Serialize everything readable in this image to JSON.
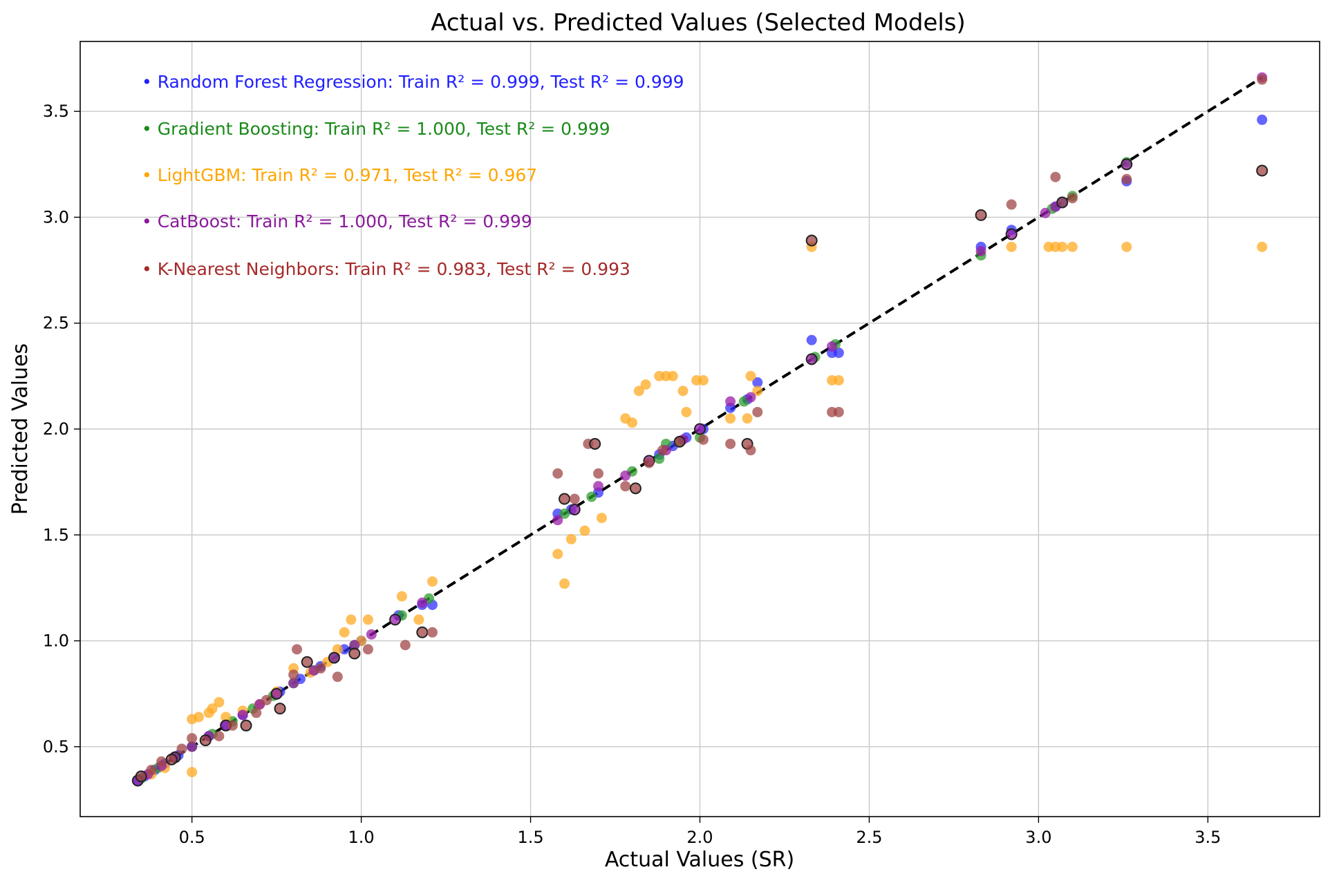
{
  "chart_data": {
    "type": "scatter",
    "title": "Actual vs. Predicted Values (Selected Models)",
    "xlabel": "Actual Values (SR)",
    "ylabel": "Predicted Values",
    "xlim": [
      0.17,
      3.83
    ],
    "ylim": [
      0.17,
      3.83
    ],
    "xticks": [
      0.5,
      1.0,
      1.5,
      2.0,
      2.5,
      3.0,
      3.5
    ],
    "yticks": [
      0.5,
      1.0,
      1.5,
      2.0,
      2.5,
      3.0,
      3.5
    ],
    "xtick_labels": [
      "0.5",
      "1.0",
      "1.5",
      "2.0",
      "2.5",
      "3.0",
      "3.5"
    ],
    "ytick_labels": [
      "0.5",
      "1.0",
      "1.5",
      "2.0",
      "2.5",
      "3.0",
      "3.5"
    ],
    "grid": true,
    "reference_line": {
      "style": "dashed",
      "color": "#000000",
      "from": [
        0.34,
        0.34
      ],
      "to": [
        3.66,
        3.66
      ]
    },
    "annotations": [
      {
        "text": "• Random Forest Regression: Train R² = 0.999, Test R² = 0.999",
        "color": "#1f1fff"
      },
      {
        "text": "• Gradient Boosting: Train R² = 1.000, Test R² = 0.999",
        "color": "#1a8a1a"
      },
      {
        "text": "• LightGBM: Train R² = 0.971, Test R² = 0.967",
        "color": "#ffa500"
      },
      {
        "text": "• CatBoost: Train R² = 1.000, Test R² = 0.999",
        "color": "#8b1a9b"
      },
      {
        "text": "• K-Nearest Neighbors: Train R² = 0.983, Test R² = 0.993",
        "color": "#a52a2a"
      }
    ],
    "series": [
      {
        "name": "Random Forest Regression",
        "color": "#3030ff",
        "x": [
          0.34,
          0.36,
          0.39,
          0.42,
          0.46,
          0.5,
          0.55,
          0.6,
          0.65,
          0.7,
          0.76,
          0.82,
          0.88,
          0.95,
          1.0,
          1.11,
          1.18,
          1.21,
          1.58,
          1.62,
          1.7,
          1.88,
          1.92,
          1.96,
          2.01,
          2.09,
          2.14,
          2.17,
          2.33,
          2.39,
          2.41,
          2.83,
          2.92,
          3.05,
          3.07,
          3.26,
          3.66
        ],
        "y": [
          0.34,
          0.36,
          0.39,
          0.42,
          0.46,
          0.5,
          0.55,
          0.6,
          0.65,
          0.7,
          0.76,
          0.82,
          0.88,
          0.96,
          1.0,
          1.12,
          1.17,
          1.17,
          1.6,
          1.62,
          1.7,
          1.88,
          1.92,
          1.96,
          2.0,
          2.1,
          2.14,
          2.22,
          2.42,
          2.36,
          2.36,
          2.86,
          2.94,
          3.05,
          3.07,
          3.17,
          3.46
        ]
      },
      {
        "name": "Gradient Boosting",
        "color": "#2e9e2e",
        "x": [
          0.35,
          0.4,
          0.45,
          0.5,
          0.56,
          0.62,
          0.68,
          0.74,
          0.8,
          0.86,
          0.92,
          0.98,
          1.12,
          1.2,
          1.6,
          1.68,
          1.8,
          1.88,
          1.9,
          1.94,
          2.0,
          2.13,
          2.34,
          2.4,
          2.83,
          3.04,
          3.1,
          3.26
        ],
        "y": [
          0.35,
          0.4,
          0.45,
          0.5,
          0.56,
          0.62,
          0.68,
          0.74,
          0.8,
          0.86,
          0.92,
          0.98,
          1.12,
          1.2,
          1.6,
          1.68,
          1.8,
          1.86,
          1.93,
          1.94,
          1.96,
          2.13,
          2.34,
          2.4,
          2.82,
          3.04,
          3.1,
          3.26
        ]
      },
      {
        "name": "LightGBM",
        "color": "#ffaa22",
        "x": [
          0.38,
          0.42,
          0.5,
          0.5,
          0.52,
          0.55,
          0.56,
          0.58,
          0.6,
          0.65,
          0.7,
          0.75,
          0.8,
          0.85,
          0.9,
          0.93,
          0.95,
          0.97,
          1.0,
          1.02,
          1.12,
          1.17,
          1.21,
          1.58,
          1.6,
          1.62,
          1.66,
          1.71,
          1.78,
          1.8,
          1.82,
          1.84,
          1.88,
          1.9,
          1.92,
          1.95,
          1.96,
          1.99,
          2.01,
          2.09,
          2.14,
          2.15,
          2.17,
          2.33,
          2.39,
          2.41,
          2.92,
          3.03,
          3.05,
          3.07,
          3.1,
          3.26,
          3.66
        ],
        "y": [
          0.37,
          0.4,
          0.38,
          0.63,
          0.64,
          0.66,
          0.68,
          0.71,
          0.64,
          0.67,
          0.7,
          0.76,
          0.87,
          0.85,
          0.9,
          0.96,
          1.04,
          1.1,
          1.0,
          1.1,
          1.21,
          1.1,
          1.28,
          1.41,
          1.27,
          1.48,
          1.52,
          1.58,
          2.05,
          2.03,
          2.18,
          2.21,
          2.25,
          2.25,
          2.25,
          2.18,
          2.08,
          2.23,
          2.23,
          2.05,
          2.05,
          2.25,
          2.18,
          2.86,
          2.23,
          2.23,
          2.86,
          2.86,
          2.86,
          2.86,
          2.86,
          2.86,
          2.86
        ]
      },
      {
        "name": "CatBoost",
        "color": "#9a1fa8",
        "x": [
          0.34,
          0.37,
          0.41,
          0.45,
          0.5,
          0.55,
          0.6,
          0.65,
          0.7,
          0.75,
          0.8,
          0.86,
          0.92,
          0.98,
          1.03,
          1.1,
          1.18,
          1.58,
          1.63,
          1.7,
          1.78,
          1.85,
          1.9,
          1.95,
          2.0,
          2.09,
          2.15,
          2.33,
          2.39,
          2.83,
          2.92,
          3.02,
          3.05,
          3.26,
          3.66
        ],
        "y": [
          0.34,
          0.37,
          0.41,
          0.45,
          0.5,
          0.55,
          0.6,
          0.65,
          0.7,
          0.75,
          0.8,
          0.86,
          0.92,
          0.98,
          1.03,
          1.1,
          1.18,
          1.57,
          1.62,
          1.73,
          1.78,
          1.85,
          1.9,
          1.95,
          2.0,
          2.13,
          2.15,
          2.33,
          2.39,
          2.84,
          2.92,
          3.02,
          3.05,
          3.25,
          3.66
        ]
      },
      {
        "name": "K-Nearest Neighbors",
        "color": "#a04545",
        "x": [
          0.35,
          0.38,
          0.41,
          0.44,
          0.47,
          0.5,
          0.54,
          0.58,
          0.62,
          0.66,
          0.69,
          0.72,
          0.76,
          0.8,
          0.81,
          0.84,
          0.88,
          0.93,
          0.98,
          1.02,
          1.13,
          1.18,
          1.21,
          1.58,
          1.6,
          1.63,
          1.67,
          1.69,
          1.7,
          1.78,
          1.81,
          1.85,
          1.89,
          1.94,
          2.01,
          2.09,
          2.14,
          2.15,
          2.17,
          2.33,
          2.39,
          2.41,
          2.83,
          2.92,
          3.05,
          3.07,
          3.1,
          3.26,
          3.66,
          3.66
        ],
        "y": [
          0.36,
          0.39,
          0.43,
          0.44,
          0.49,
          0.54,
          0.53,
          0.55,
          0.6,
          0.6,
          0.66,
          0.72,
          0.68,
          0.84,
          0.96,
          0.9,
          0.87,
          0.83,
          0.94,
          0.96,
          0.98,
          1.04,
          1.04,
          1.79,
          1.67,
          1.67,
          1.93,
          1.93,
          1.79,
          1.73,
          1.72,
          1.84,
          1.9,
          1.94,
          1.95,
          1.93,
          1.93,
          1.9,
          2.08,
          2.89,
          2.08,
          2.08,
          3.01,
          3.06,
          3.19,
          3.07,
          3.09,
          3.18,
          3.22,
          3.65
        ]
      }
    ]
  }
}
